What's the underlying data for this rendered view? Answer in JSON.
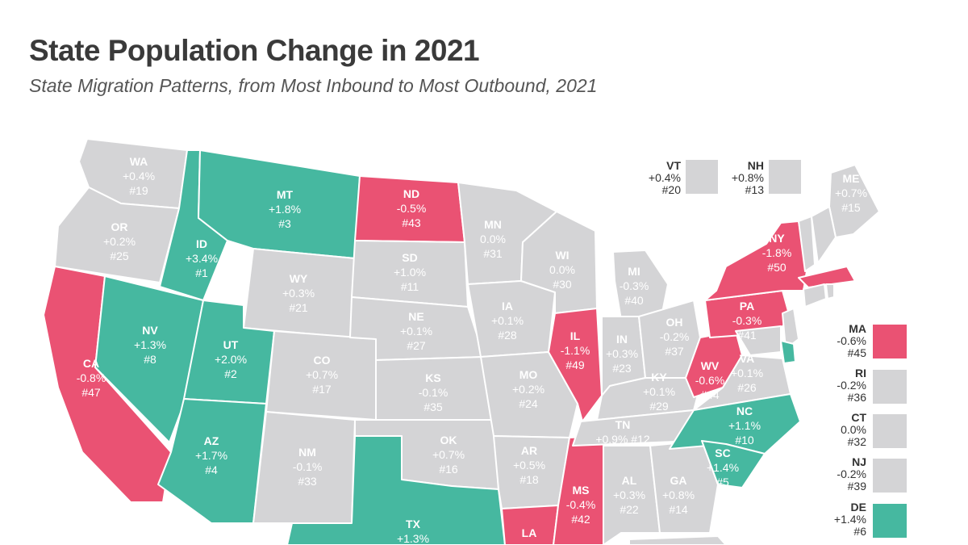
{
  "title": "State Population Change in 2021",
  "subtitle": "State Migration Patterns, from Most Inbound to Most Outbound, 2021",
  "colors": {
    "positive": "#46b8a0",
    "negative": "#ea5273",
    "neutral": "#d4d4d6",
    "label_light": "#ffffff"
  },
  "states": [
    {
      "code": "WA",
      "change": "+0.4%",
      "rank": "#19",
      "status": "neutral"
    },
    {
      "code": "OR",
      "change": "+0.2%",
      "rank": "#25",
      "status": "neutral"
    },
    {
      "code": "CA",
      "change": "-0.8%",
      "rank": "#47",
      "status": "negative"
    },
    {
      "code": "ID",
      "change": "+3.4%",
      "rank": "#1",
      "status": "positive"
    },
    {
      "code": "NV",
      "change": "+1.3%",
      "rank": "#8",
      "status": "positive"
    },
    {
      "code": "MT",
      "change": "+1.8%",
      "rank": "#3",
      "status": "positive"
    },
    {
      "code": "WY",
      "change": "+0.3%",
      "rank": "#21",
      "status": "neutral"
    },
    {
      "code": "UT",
      "change": "+2.0%",
      "rank": "#2",
      "status": "positive"
    },
    {
      "code": "AZ",
      "change": "+1.7%",
      "rank": "#4",
      "status": "positive"
    },
    {
      "code": "CO",
      "change": "+0.7%",
      "rank": "#17",
      "status": "neutral"
    },
    {
      "code": "NM",
      "change": "-0.1%",
      "rank": "#33",
      "status": "neutral"
    },
    {
      "code": "ND",
      "change": "-0.5%",
      "rank": "#43",
      "status": "negative"
    },
    {
      "code": "SD",
      "change": "+1.0%",
      "rank": "#11",
      "status": "neutral"
    },
    {
      "code": "NE",
      "change": "+0.1%",
      "rank": "#27",
      "status": "neutral"
    },
    {
      "code": "KS",
      "change": "-0.1%",
      "rank": "#35",
      "status": "neutral"
    },
    {
      "code": "OK",
      "change": "+0.7%",
      "rank": "#16",
      "status": "neutral"
    },
    {
      "code": "TX",
      "change": "+1.3%",
      "rank": "",
      "status": "positive"
    },
    {
      "code": "MN",
      "change": "0.0%",
      "rank": "#31",
      "status": "neutral"
    },
    {
      "code": "IA",
      "change": "+0.1%",
      "rank": "#28",
      "status": "neutral"
    },
    {
      "code": "MO",
      "change": "+0.2%",
      "rank": "#24",
      "status": "neutral"
    },
    {
      "code": "AR",
      "change": "+0.5%",
      "rank": "#18",
      "status": "neutral"
    },
    {
      "code": "LA",
      "change": "",
      "rank": "",
      "status": "negative"
    },
    {
      "code": "WI",
      "change": "0.0%",
      "rank": "#30",
      "status": "neutral"
    },
    {
      "code": "IL",
      "change": "-1.1%",
      "rank": "#49",
      "status": "negative"
    },
    {
      "code": "MS",
      "change": "-0.4%",
      "rank": "#42",
      "status": "negative"
    },
    {
      "code": "MI",
      "change": "-0.3%",
      "rank": "#40",
      "status": "neutral"
    },
    {
      "code": "IN",
      "change": "+0.3%",
      "rank": "#23",
      "status": "neutral"
    },
    {
      "code": "KY",
      "change": "+0.1%",
      "rank": "#29",
      "status": "neutral"
    },
    {
      "code": "TN",
      "change": "+0.9%",
      "rank": "#12",
      "status": "neutral"
    },
    {
      "code": "AL",
      "change": "+0.3%",
      "rank": "#22",
      "status": "neutral"
    },
    {
      "code": "GA",
      "change": "+0.8%",
      "rank": "#14",
      "status": "neutral"
    },
    {
      "code": "OH",
      "change": "-0.2%",
      "rank": "#37",
      "status": "neutral"
    },
    {
      "code": "WV",
      "change": "-0.6%",
      "rank": "#44",
      "status": "negative"
    },
    {
      "code": "VA",
      "change": "+0.1%",
      "rank": "#26",
      "status": "neutral"
    },
    {
      "code": "NC",
      "change": "+1.1%",
      "rank": "#10",
      "status": "positive"
    },
    {
      "code": "SC",
      "change": "+1.4%",
      "rank": "#5",
      "status": "positive"
    },
    {
      "code": "PA",
      "change": "-0.3%",
      "rank": "#41",
      "status": "negative"
    },
    {
      "code": "NY",
      "change": "-1.8%",
      "rank": "#50",
      "status": "negative"
    },
    {
      "code": "ME",
      "change": "+0.7%",
      "rank": "#15",
      "status": "neutral"
    }
  ],
  "small_states": [
    {
      "code": "VT",
      "change": "+0.4%",
      "rank": "#20",
      "status": "neutral"
    },
    {
      "code": "NH",
      "change": "+0.8%",
      "rank": "#13",
      "status": "neutral"
    },
    {
      "code": "MA",
      "change": "-0.6%",
      "rank": "#45",
      "status": "negative"
    },
    {
      "code": "RI",
      "change": "-0.2%",
      "rank": "#36",
      "status": "neutral"
    },
    {
      "code": "CT",
      "change": "0.0%",
      "rank": "#32",
      "status": "neutral"
    },
    {
      "code": "NJ",
      "change": "-0.2%",
      "rank": "#39",
      "status": "neutral"
    },
    {
      "code": "DE",
      "change": "+1.4%",
      "rank": "#6",
      "status": "positive"
    }
  ]
}
